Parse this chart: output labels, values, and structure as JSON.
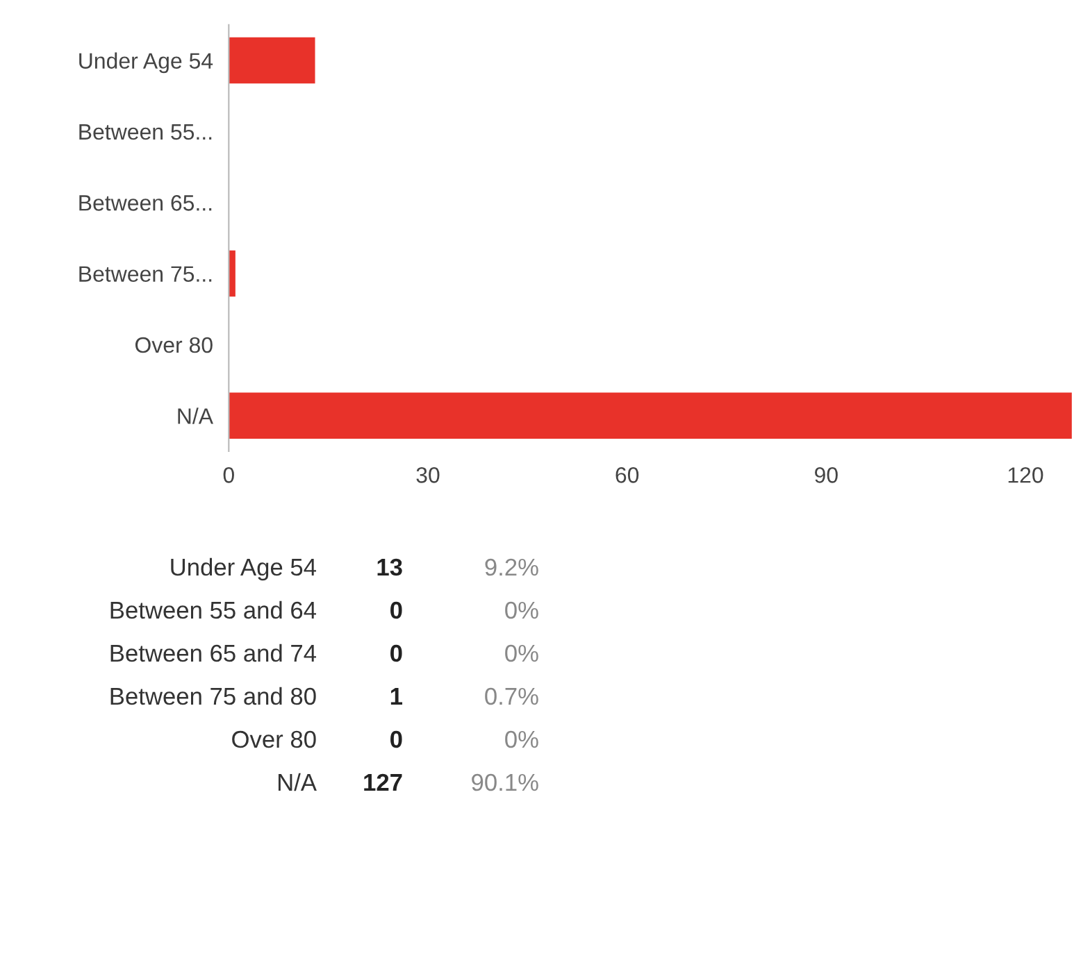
{
  "chart_data": {
    "type": "bar",
    "orientation": "horizontal",
    "categories": [
      "Under Age 54",
      "Between 55...",
      "Between 65...",
      "Between 75...",
      "Over 80",
      "N/A"
    ],
    "values": [
      13,
      0,
      0,
      1,
      0,
      127
    ],
    "color": "#e8322a",
    "xlim": [
      0,
      127
    ],
    "xticks": [
      0,
      30,
      60,
      90,
      120
    ],
    "grid": false,
    "legend": false,
    "annotations": [
      "Under Age 54",
      "Between 55 and 64",
      "Between 65 and 74",
      "Between 75 and 80",
      "Over 80",
      "N/A",
      "13",
      "0",
      "0",
      "1",
      "0",
      "127",
      "9.2%",
      "0%",
      "0%",
      "0.7%",
      "0%",
      "90.1%"
    ]
  }
}
